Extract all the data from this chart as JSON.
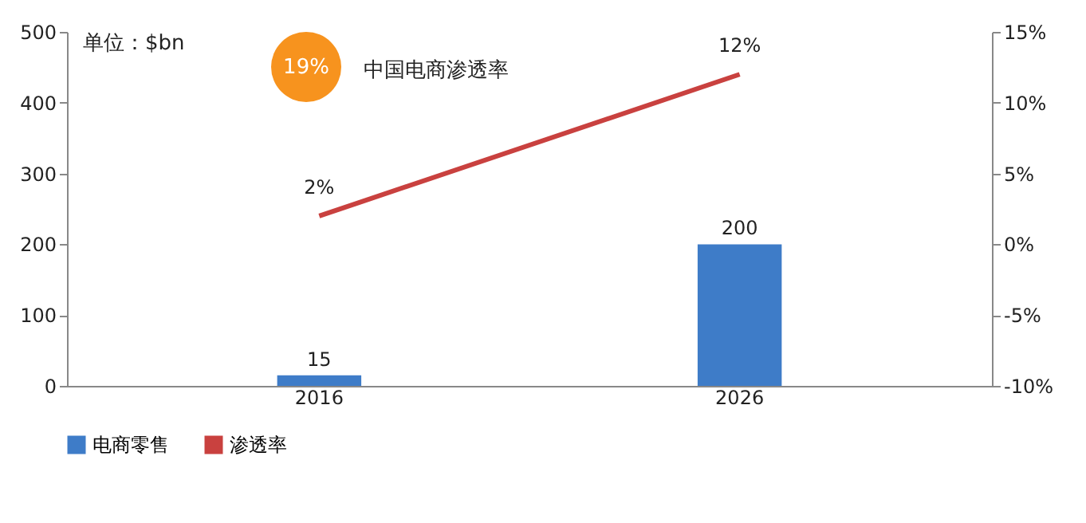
{
  "chart_data": {
    "type": "bar",
    "categories": [
      "2016",
      "2026"
    ],
    "series": [
      {
        "name": "电商零售",
        "color": "#3e7cc8",
        "values": [
          15,
          200
        ],
        "value_labels": [
          "15",
          "200"
        ]
      },
      {
        "name": "渗透率",
        "type": "line",
        "axis": "y2",
        "color": "#c9413f",
        "values": [
          2,
          12
        ],
        "value_labels": [
          "2%",
          "12%"
        ]
      }
    ],
    "ylim": [
      0,
      500
    ],
    "yticks": [
      0,
      100,
      200,
      300,
      400,
      500
    ],
    "y2lim": [
      -10,
      15
    ],
    "y2ticks": [
      {
        "value": -10,
        "label": "-10%"
      },
      {
        "value": -5,
        "label": "-5%"
      },
      {
        "value": 0,
        "label": "0%"
      },
      {
        "value": 5,
        "label": "5%"
      },
      {
        "value": 10,
        "label": "10%"
      },
      {
        "value": 15,
        "label": "15%"
      }
    ],
    "annotations": [
      "单位：$bn",
      "19%",
      "中国电商渗透率"
    ],
    "legend": "bottom",
    "grid": false
  }
}
